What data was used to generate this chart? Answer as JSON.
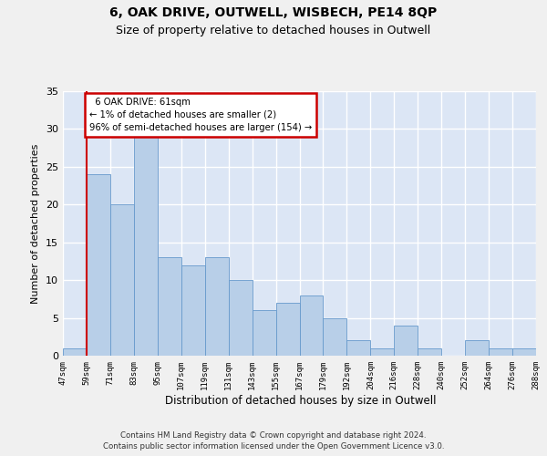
{
  "title1": "6, OAK DRIVE, OUTWELL, WISBECH, PE14 8QP",
  "title2": "Size of property relative to detached houses in Outwell",
  "xlabel": "Distribution of detached houses by size in Outwell",
  "ylabel": "Number of detached properties",
  "footer1": "Contains HM Land Registry data © Crown copyright and database right 2024.",
  "footer2": "Contains public sector information licensed under the Open Government Licence v3.0.",
  "bin_labels": [
    "47sqm",
    "59sqm",
    "71sqm",
    "83sqm",
    "95sqm",
    "107sqm",
    "119sqm",
    "131sqm",
    "143sqm",
    "155sqm",
    "167sqm",
    "179sqm",
    "192sqm",
    "204sqm",
    "216sqm",
    "228sqm",
    "240sqm",
    "252sqm",
    "264sqm",
    "276sqm",
    "288sqm"
  ],
  "bar_values": [
    1,
    24,
    20,
    29,
    13,
    12,
    13,
    10,
    6,
    7,
    8,
    5,
    2,
    1,
    4,
    1,
    0,
    2,
    1,
    1
  ],
  "bar_color": "#b8cfe8",
  "bar_edge_color": "#6699cc",
  "annotation_text": "  6 OAK DRIVE: 61sqm\n← 1% of detached houses are smaller (2)\n96% of semi-detached houses are larger (154) →",
  "annotation_box_color": "#ffffff",
  "annotation_border_color": "#cc0000",
  "property_line_color": "#cc0000",
  "ylim": [
    0,
    35
  ],
  "yticks": [
    0,
    5,
    10,
    15,
    20,
    25,
    30,
    35
  ],
  "background_color": "#dce6f5",
  "grid_color": "#ffffff",
  "fig_bg_color": "#f0f0f0"
}
